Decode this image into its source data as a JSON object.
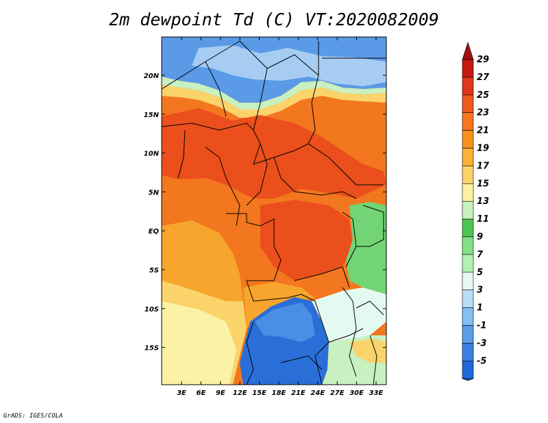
{
  "title": "2m dewpoint Td (C) VT:2020082009",
  "credit": "GrADS: IGES/COLA",
  "lat_labels": [
    "20N",
    "15N",
    "10N",
    "5N",
    "EQ",
    "5S",
    "10S",
    "15S"
  ],
  "lon_labels": [
    "3E",
    "6E",
    "9E",
    "12E",
    "15E",
    "18E",
    "21E",
    "24E",
    "27E",
    "30E",
    "33E"
  ],
  "colorbar": {
    "labels": [
      "29",
      "27",
      "25",
      "23",
      "21",
      "19",
      "17",
      "15",
      "13",
      "11",
      "9",
      "7",
      "5",
      "3",
      "1",
      "-1",
      "-3",
      "-5"
    ],
    "colors": [
      "#a01010",
      "#c41a10",
      "#dd3818",
      "#ee5a20",
      "#f7761e",
      "#f7931c",
      "#f9b237",
      "#fbd36a",
      "#fbf2a0",
      "#c8f0c0",
      "#4cc552",
      "#85df85",
      "#b4efb4",
      "#e4faf0",
      "#b9dcf7",
      "#84bef2",
      "#5b9ce8",
      "#3a80e2",
      "#2169d8",
      "#1a56cc"
    ],
    "min_label": "-5",
    "max_label": "29"
  },
  "map_colors": {
    "desert_blue": "#5a9ae6",
    "light_blue": "#a6ccf2",
    "deep_orange": "#ea4f1c",
    "orange": "#f3771e",
    "amber": "#f7a52d",
    "yellow": "#fad36a",
    "pale": "#fbf2a6",
    "green": "#72d474",
    "pale_green": "#c8f0c0",
    "blue_kalahari": "#2a6fd8",
    "ocean_blue": "#4b8ee6"
  }
}
